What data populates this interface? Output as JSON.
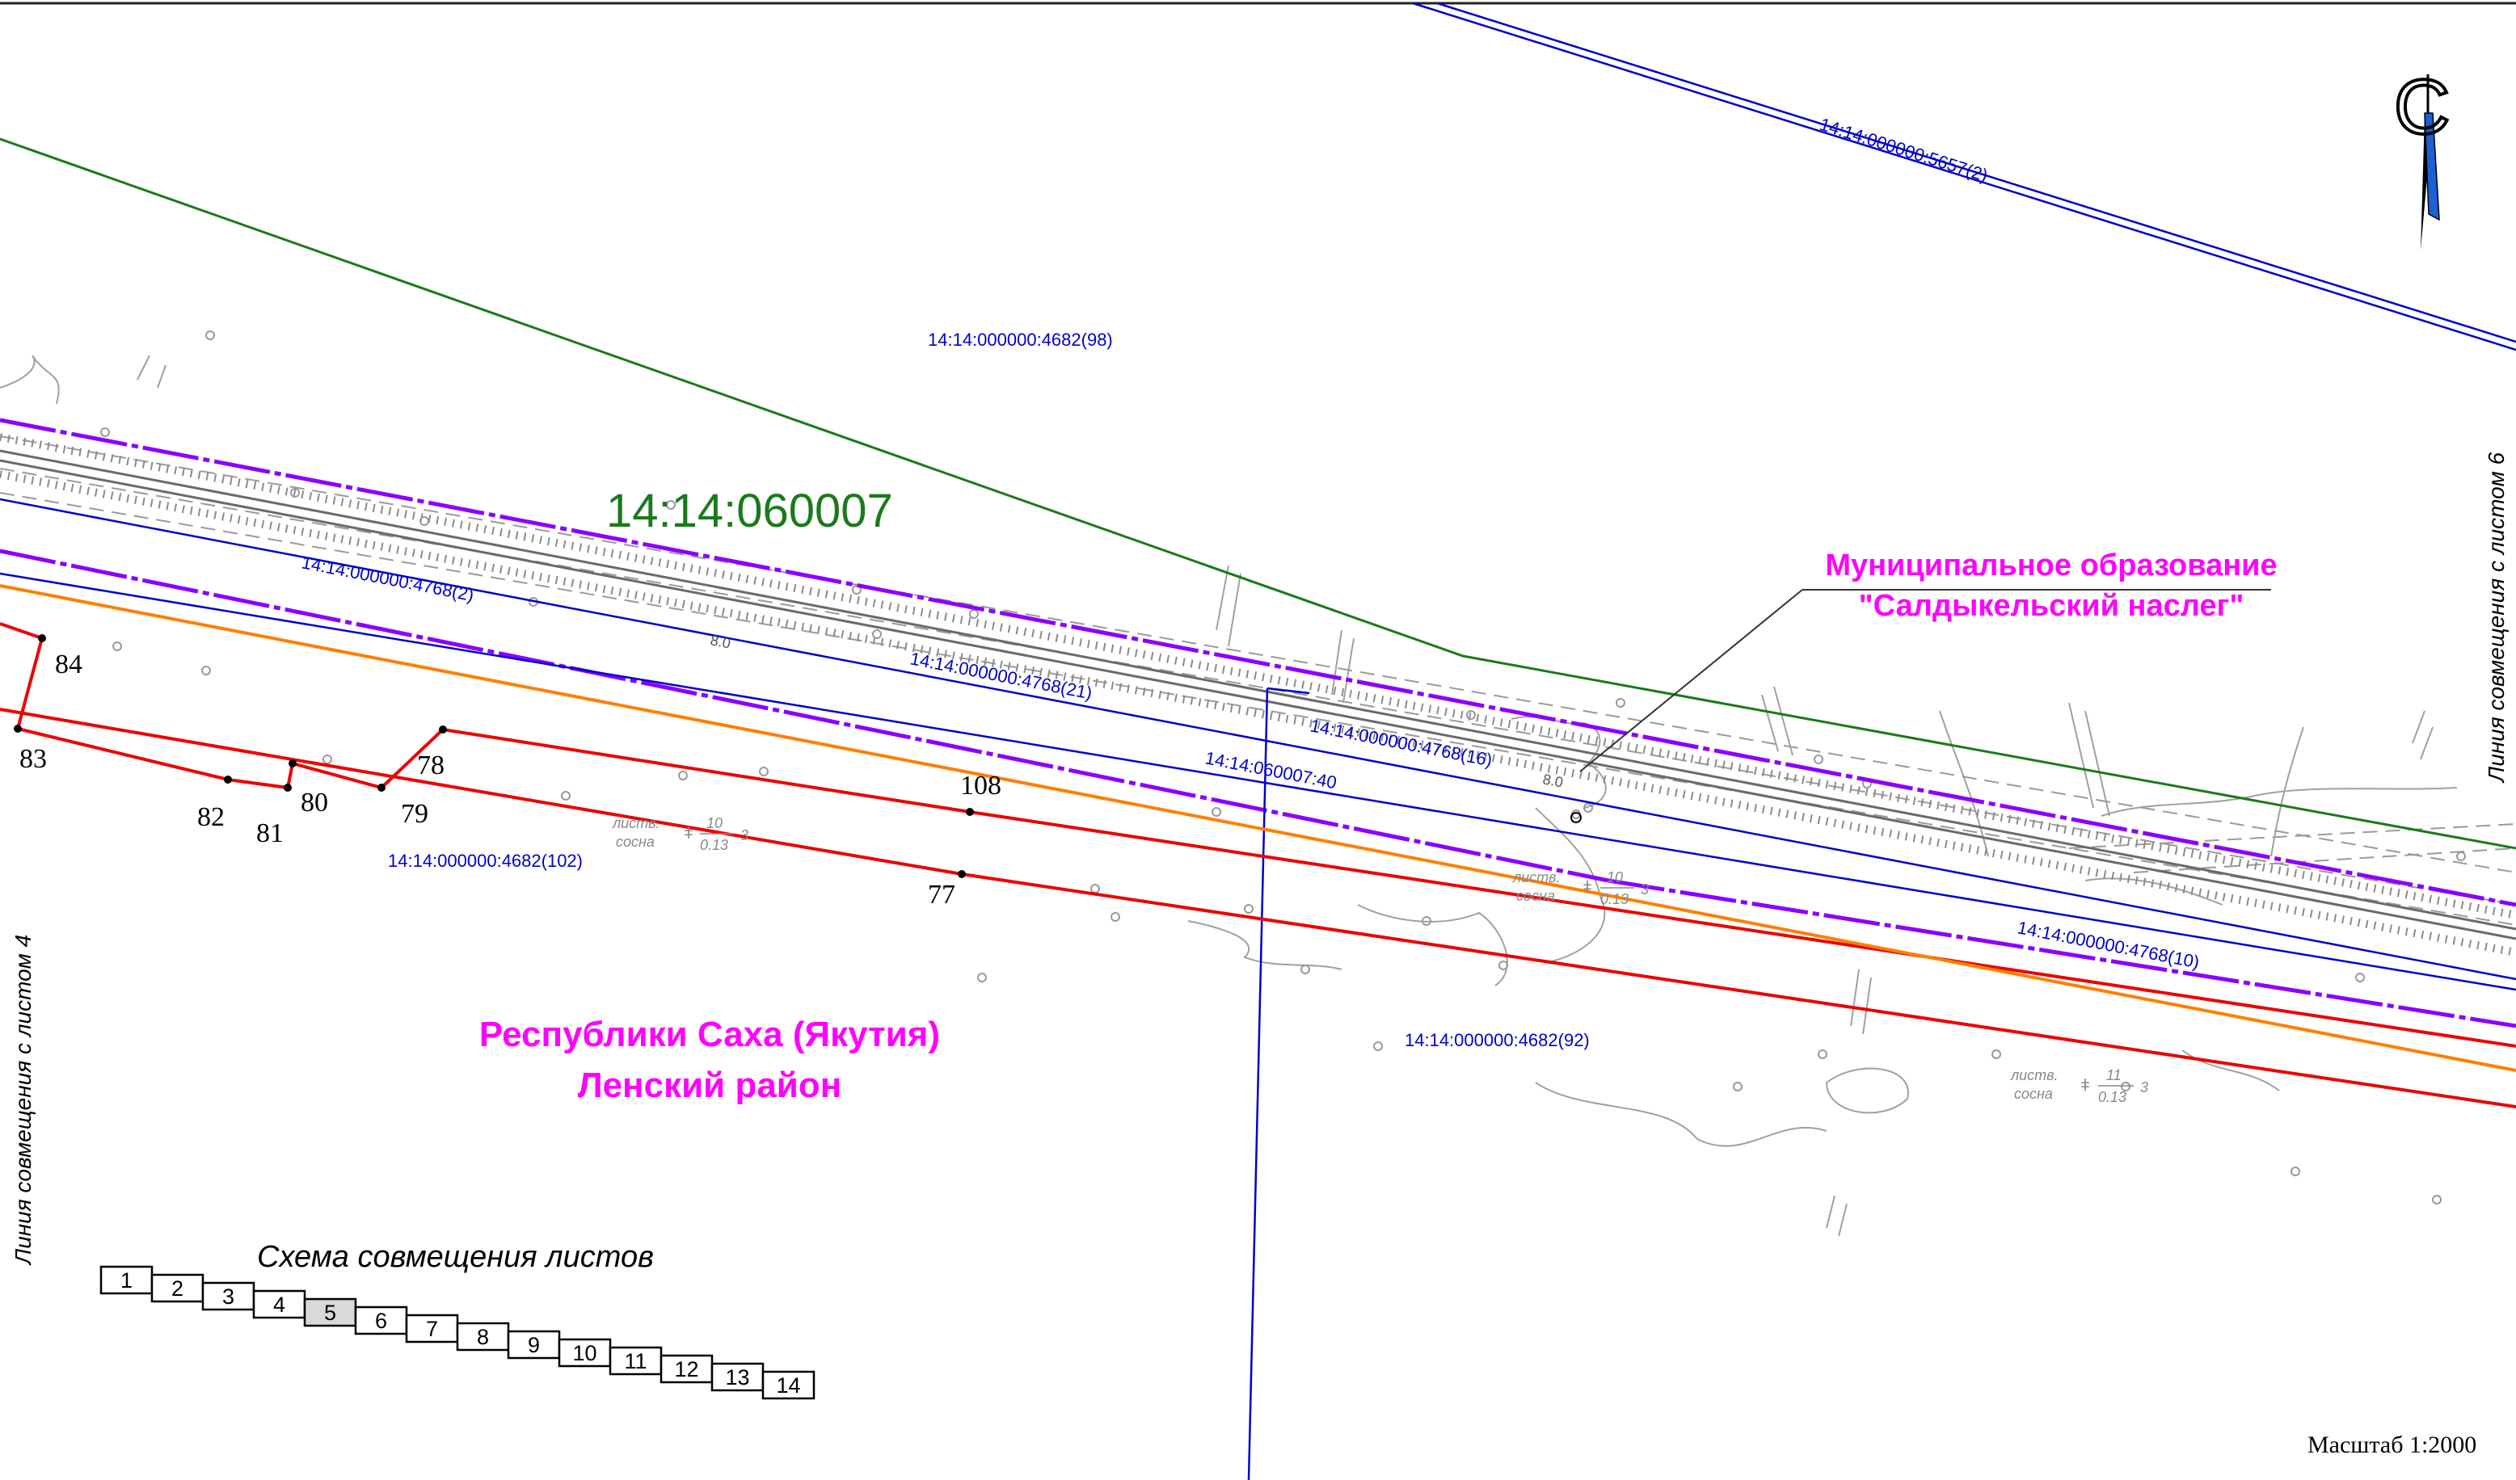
{
  "colors": {
    "cadastral_block_line": "#1a7a1a",
    "parcel_line": "#0000cc",
    "right_of_way": "#8b00ff",
    "planned_boundary": "#ee0000",
    "buffer_zone": "#ff7f00",
    "municipal_label": "#ff00ff",
    "terrain": "#9a9a9a",
    "north_arrow_fill": "#1c5fd6"
  },
  "block_label": "14:14:060007",
  "parcel_labels": {
    "p5657": "14:14:000000:5657(2)",
    "p4682_98": "14:14:000000:4682(98)",
    "p4768_2": "14:14:000000:4768(2)",
    "p4768_21": "14:14:000000:4768(21)",
    "p4768_16": "14:14:000000:4768(16)",
    "p060007_40": "14:14:060007:40",
    "p4682_102": "14:14:000000:4682(102)",
    "p4768_10": "14:14:000000:4768(10)",
    "p4682_92": "14:14:000000:4682(92)"
  },
  "point_labels": {
    "p84": "84",
    "p83": "83",
    "p82": "82",
    "p81": "81",
    "p80": "80",
    "p79": "79",
    "p78": "78",
    "p108": "108",
    "p77": "77"
  },
  "municipal": {
    "line1": "Муниципальное образование",
    "line2": "\"Салдыкельский наслег\""
  },
  "region": {
    "line1": "Республики Саха (Якутия)",
    "line2": "Ленский район"
  },
  "side_labels": {
    "left": "Линия совмещения с листом 4",
    "right": "Линия совмещения с листом 6"
  },
  "forest_annotations": [
    {
      "word1": "листв.",
      "word2": "сосна",
      "num": "10",
      "den": "0.13",
      "suffix": "3"
    },
    {
      "word1": "листв.",
      "word2": "сосна",
      "num": "10",
      "den": "0.13",
      "suffix": "3"
    },
    {
      "word1": "листв.",
      "word2": "сосна",
      "num": "11",
      "den": "0.13",
      "suffix": "3"
    }
  ],
  "road_widths": [
    "8.0",
    "8.0"
  ],
  "sheet_scheme": {
    "title": "Схема совмещения листов",
    "sheets": [
      "1",
      "2",
      "3",
      "4",
      "5",
      "6",
      "7",
      "8",
      "9",
      "10",
      "11",
      "12",
      "13",
      "14"
    ],
    "current": "5"
  },
  "north_letter": "С",
  "scale": "Масштаб 1:2000"
}
